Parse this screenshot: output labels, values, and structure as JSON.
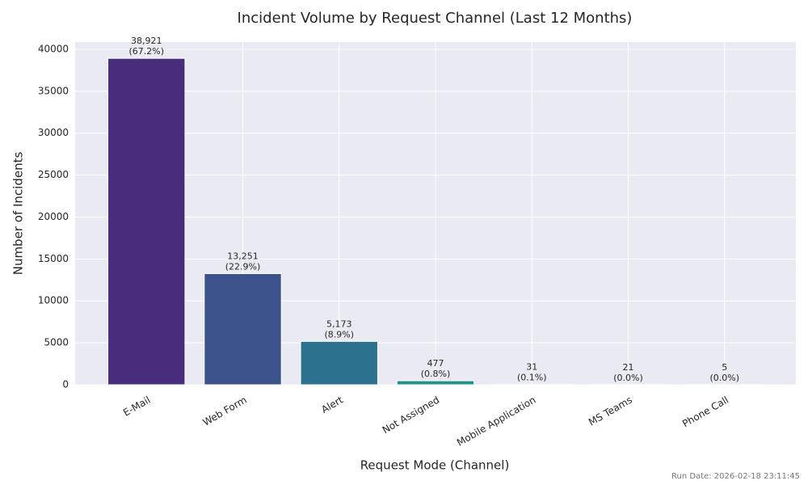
{
  "chart_data": {
    "type": "bar",
    "title": "Incident Volume by Request Channel (Last 12 Months)",
    "x_label": "Request Mode (Channel)",
    "y_label": "Number of Incidents",
    "categories": [
      "E-Mail",
      "Web Form",
      "Alert",
      "Not Assigned",
      "Mobile Application",
      "MS Teams",
      "Phone Call"
    ],
    "values": [
      38921,
      13251,
      5173,
      477,
      31,
      21,
      5
    ],
    "value_labels": [
      "38,921",
      "13,251",
      "5,173",
      "477",
      "31",
      "21",
      "5"
    ],
    "percent_labels": [
      "(67.2%)",
      "(22.9%)",
      "(8.9%)",
      "(0.8%)",
      "(0.1%)",
      "(0.0%)",
      "(0.0%)"
    ],
    "colors": [
      "#472d7b",
      "#3b528b",
      "#2c728e",
      "#21918c",
      "#27ad81",
      "#5dc863",
      "#aadc32"
    ],
    "ylim": [
      0,
      40867
    ],
    "yticks": [
      0,
      5000,
      10000,
      15000,
      20000,
      25000,
      30000,
      35000,
      40000
    ],
    "grid": true
  },
  "footer": "Run Date: 2026-02-18 23:11:45"
}
